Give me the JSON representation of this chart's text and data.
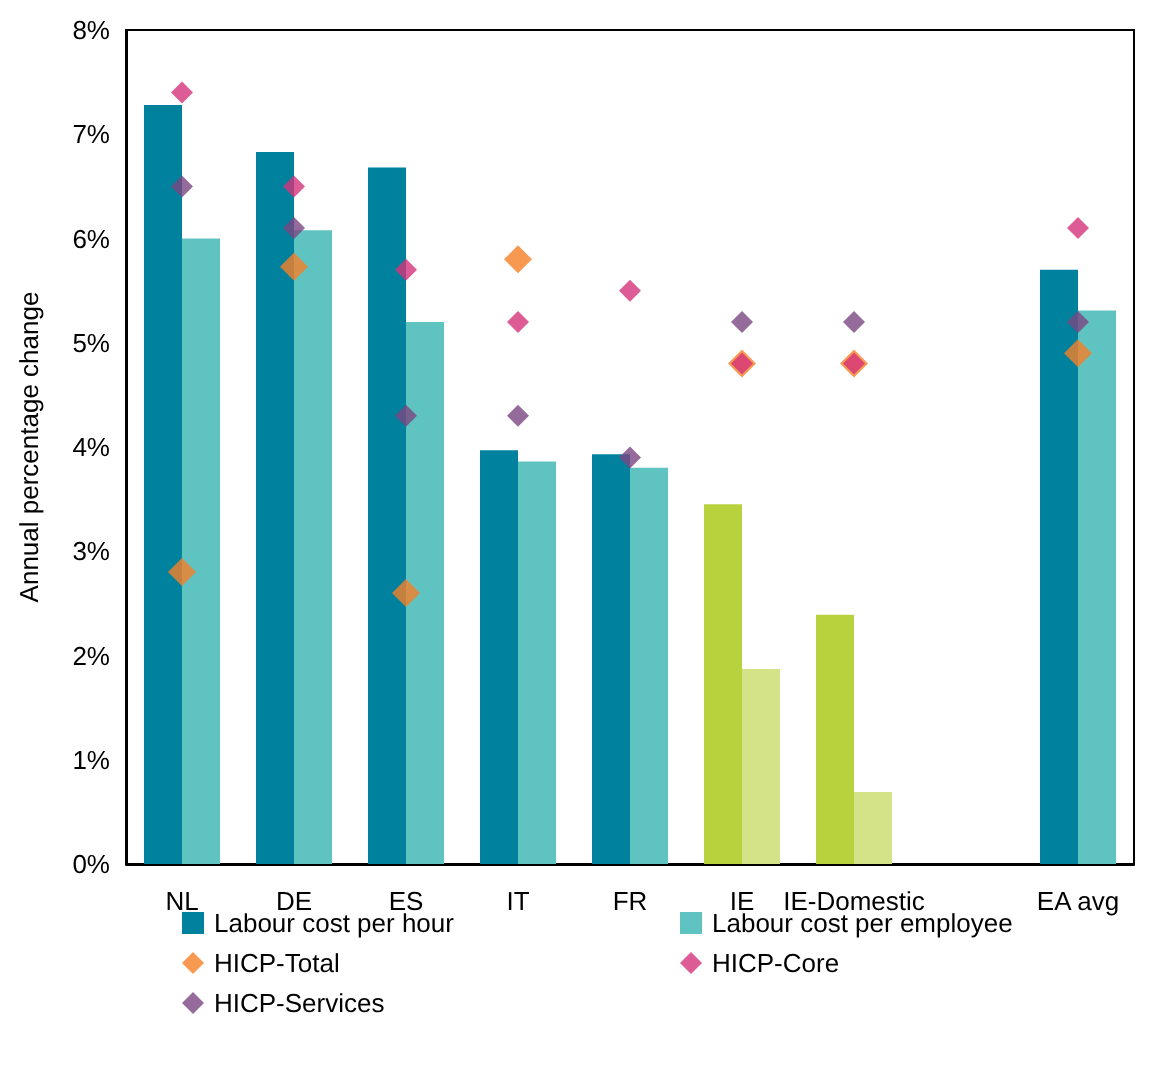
{
  "chart_data": {
    "type": "bar",
    "ylabel": "Annual percentage change",
    "categories": [
      "NL",
      "DE",
      "ES",
      "IT",
      "FR",
      "IE",
      "IE-Domestic",
      null,
      "EA avg"
    ],
    "series": [
      {
        "name": "Labour cost per hour",
        "color": "#00829f",
        "colors": [
          "#00829f",
          "#00829f",
          "#00829f",
          "#00829f",
          "#00829f",
          "#b8d23e",
          "#b8d23e",
          "#00829f",
          "#00829f"
        ],
        "values": [
          7.28,
          6.83,
          6.68,
          3.97,
          3.93,
          3.45,
          2.39,
          null,
          5.7
        ]
      },
      {
        "name": "Labour cost per employee",
        "color": "#5fc4c1",
        "colors": [
          "#5fc4c1",
          "#5fc4c1",
          "#5fc4c1",
          "#5fc4c1",
          "#5fc4c1",
          "#d4e388",
          "#d4e388",
          "#5fc4c1",
          "#5fc4c1"
        ],
        "values": [
          6.0,
          6.08,
          5.2,
          3.86,
          3.8,
          1.87,
          0.69,
          null,
          5.31
        ]
      },
      {
        "name": "HICP-Total",
        "type": "scatter",
        "color": "#f58025",
        "values": [
          2.8,
          5.73,
          2.6,
          5.8,
          null,
          4.8,
          4.8,
          null,
          4.9
        ]
      },
      {
        "name": "HICP-Core",
        "type": "scatter",
        "color": "#d6337b",
        "values": [
          7.4,
          6.5,
          5.7,
          5.2,
          5.5,
          4.8,
          4.8,
          null,
          6.1
        ]
      },
      {
        "name": "HICP-Services",
        "type": "scatter",
        "color": "#7b4682",
        "values": [
          6.5,
          6.1,
          4.3,
          4.3,
          3.9,
          5.2,
          5.2,
          null,
          5.2
        ]
      }
    ],
    "ylim": [
      0,
      8
    ],
    "yticks": [
      {
        "value": 0,
        "label": "0%"
      },
      {
        "value": 1,
        "label": "1%"
      },
      {
        "value": 2,
        "label": "2%"
      },
      {
        "value": 3,
        "label": "3%"
      },
      {
        "value": 4,
        "label": "4%"
      },
      {
        "value": 5,
        "label": "5%"
      },
      {
        "value": 6,
        "label": "6%"
      },
      {
        "value": 7,
        "label": "7%"
      },
      {
        "value": 8,
        "label": "8%"
      }
    ],
    "grid": false,
    "legend": "bottom",
    "marker": "diamond"
  }
}
